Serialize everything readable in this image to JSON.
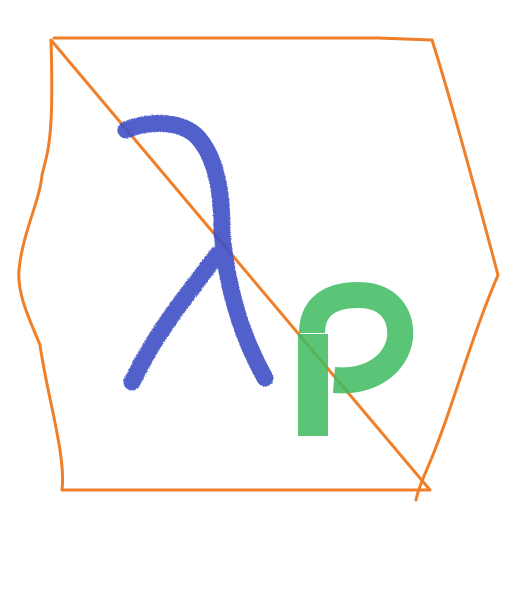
{
  "drawing": {
    "background": "#ffffff",
    "shapes": [
      {
        "kind": "hexagon-outline",
        "color": "#f07f2a"
      },
      {
        "kind": "lambda-stroke",
        "color": "#3e4fc4"
      },
      {
        "kind": "p-stroke",
        "color": "#3dbb5f"
      }
    ]
  }
}
